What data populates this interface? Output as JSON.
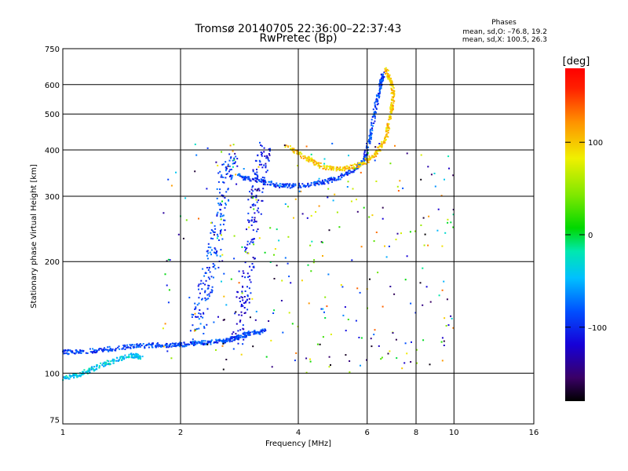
{
  "chart_data": {
    "type": "scatter",
    "title": "Tromsø 20140705 22:36:00–22:37:43",
    "subtitle": "RwPretec (Bp)",
    "stats": {
      "title": "Phases",
      "line1": "mean, sd,O: –76.8, 19.2",
      "line2": "mean, sd,X: 100.5, 26.3"
    },
    "xlabel": "Frequency [MHz]",
    "ylabel": "Stationary phase Virtual Height [km]",
    "x_scale": "log",
    "y_scale": "log",
    "xlim": [
      1,
      16
    ],
    "ylim": [
      73,
      750
    ],
    "x_ticks": [
      1,
      2,
      4,
      6,
      8,
      10,
      16
    ],
    "x_tick_labels": [
      "1",
      "2",
      "4",
      "6",
      "8",
      "10",
      "16"
    ],
    "y_ticks": [
      75,
      100,
      200,
      300,
      400,
      500,
      600,
      750
    ],
    "y_tick_labels": [
      "75",
      "100",
      "200",
      "300",
      "400",
      "500",
      "600",
      "750"
    ],
    "colorbar": {
      "label": "[deg]",
      "range": [
        -180,
        180
      ],
      "ticks": [
        100,
        0,
        -100
      ],
      "tick_labels": [
        "100",
        "0",
        "–100"
      ]
    },
    "grid": true,
    "traces": [
      {
        "name": "O-mode E/F1 trace",
        "phase_deg": -90,
        "points": [
          [
            1.0,
            114
          ],
          [
            1.1,
            114
          ],
          [
            1.3,
            116
          ],
          [
            1.5,
            118
          ],
          [
            1.7,
            119
          ],
          [
            1.9,
            119
          ],
          [
            2.1,
            120
          ],
          [
            2.3,
            121
          ],
          [
            2.6,
            122
          ],
          [
            2.8,
            125
          ],
          [
            3.0,
            128
          ],
          [
            3.3,
            130
          ]
        ]
      },
      {
        "name": "O-mode F2 trace",
        "phase_deg": -90,
        "points": [
          [
            2.8,
            340
          ],
          [
            3.2,
            330
          ],
          [
            3.6,
            320
          ],
          [
            4.0,
            320
          ],
          [
            4.5,
            325
          ],
          [
            5.0,
            335
          ],
          [
            5.5,
            350
          ],
          [
            5.9,
            375
          ],
          [
            6.1,
            430
          ],
          [
            6.3,
            520
          ],
          [
            6.5,
            600
          ],
          [
            6.6,
            640
          ]
        ]
      },
      {
        "name": "X-mode F2 trace",
        "phase_deg": 100,
        "points": [
          [
            3.7,
            410
          ],
          [
            4.2,
            380
          ],
          [
            4.6,
            360
          ],
          [
            5.2,
            355
          ],
          [
            5.8,
            365
          ],
          [
            6.3,
            390
          ],
          [
            6.7,
            430
          ],
          [
            6.9,
            500
          ],
          [
            7.0,
            560
          ],
          [
            6.9,
            610
          ],
          [
            6.7,
            660
          ]
        ]
      },
      {
        "name": "Low-frequency cyan trace",
        "phase_deg": -40,
        "points": [
          [
            1.0,
            97
          ],
          [
            1.1,
            99
          ],
          [
            1.2,
            103
          ],
          [
            1.35,
            108
          ],
          [
            1.5,
            112
          ],
          [
            1.6,
            110
          ]
        ]
      },
      {
        "name": "Vertical spread column 2.2–2.6 MHz",
        "phase_deg": -90,
        "points": [
          [
            2.2,
            130
          ],
          [
            2.3,
            160
          ],
          [
            2.4,
            200
          ],
          [
            2.5,
            250
          ],
          [
            2.6,
            330
          ],
          [
            2.7,
            380
          ]
        ]
      },
      {
        "name": "Vertical spread column 2.8–3.2 MHz",
        "phase_deg": -110,
        "points": [
          [
            2.8,
            120
          ],
          [
            2.9,
            160
          ],
          [
            3.0,
            220
          ],
          [
            3.1,
            290
          ],
          [
            3.2,
            350
          ],
          [
            3.3,
            400
          ]
        ]
      }
    ]
  }
}
